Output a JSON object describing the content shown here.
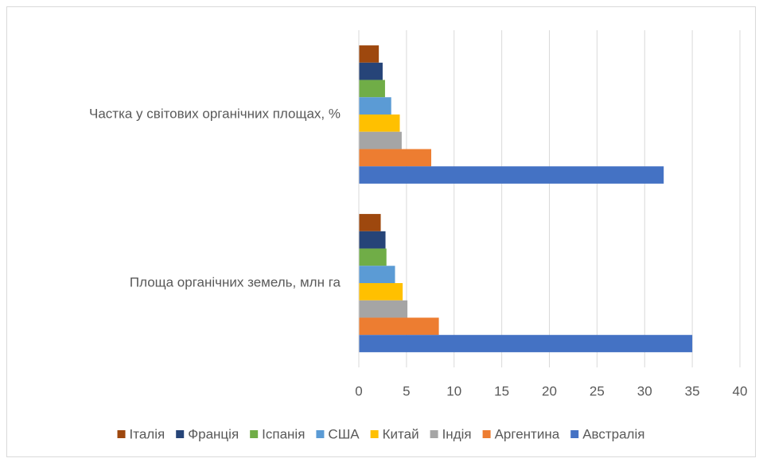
{
  "chart_data": {
    "type": "bar",
    "orientation": "horizontal",
    "categories": [
      "Площа органічних земель, млн га",
      "Частка у світових органічних площах, %"
    ],
    "series": [
      {
        "name": "Італія",
        "color": "#9e480e",
        "values": [
          2.3,
          2.1
        ]
      },
      {
        "name": "Франція",
        "color": "#264478",
        "values": [
          2.8,
          2.5
        ]
      },
      {
        "name": "Іспанія",
        "color": "#70ad47",
        "values": [
          2.9,
          2.75
        ]
      },
      {
        "name": "США",
        "color": "#5b9bd5",
        "values": [
          3.8,
          3.4
        ]
      },
      {
        "name": "Китай",
        "color": "#ffc000",
        "values": [
          4.6,
          4.3
        ]
      },
      {
        "name": "Індія",
        "color": "#a5a5a5",
        "values": [
          5.1,
          4.5
        ]
      },
      {
        "name": "Аргентина",
        "color": "#ed7d31",
        "values": [
          8.4,
          7.6
        ]
      },
      {
        "name": "Австралія",
        "color": "#4472c4",
        "values": [
          35.0,
          32.0
        ]
      }
    ],
    "xlim": [
      0,
      40
    ],
    "xticks": [
      0,
      5,
      10,
      15,
      20,
      25,
      30,
      35,
      40
    ],
    "grid": true,
    "legend": "bottom"
  }
}
